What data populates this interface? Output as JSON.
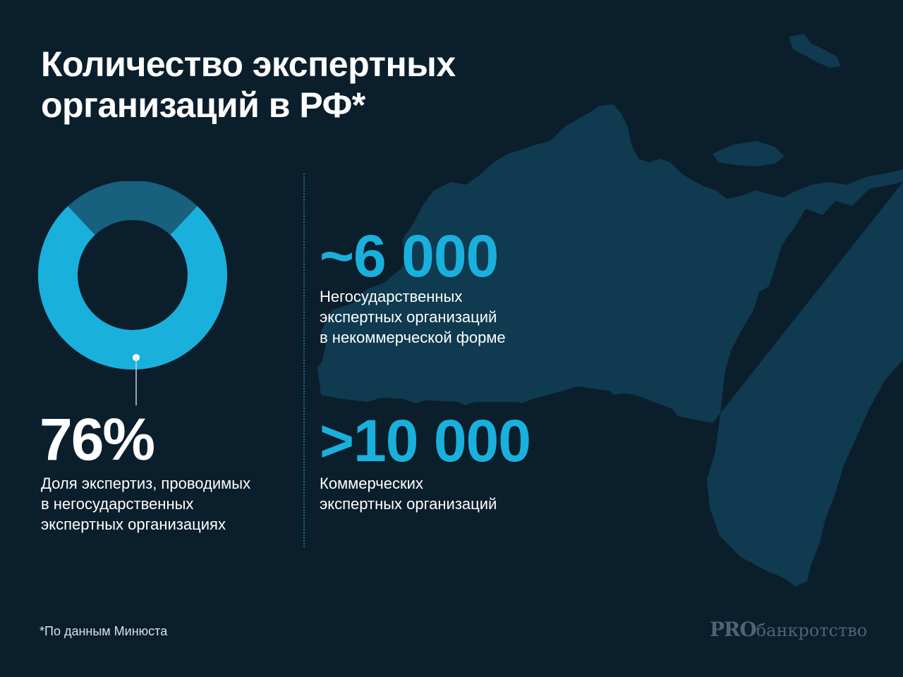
{
  "title": {
    "line1": "Количество экспертных",
    "line2": "организаций в РФ*"
  },
  "colors": {
    "background": "#0b1e2c",
    "map": "#0f3a4f",
    "accent": "#1ab0dc",
    "donut_rest": "#17607e"
  },
  "stat_share": {
    "value_text": "76%",
    "value": 76,
    "description": [
      "Доля экспертиз, проводимых",
      "в негосударственных",
      "экспертных организациях"
    ]
  },
  "stat_noncommercial": {
    "value_text": "~6 000",
    "description": [
      "Негосударственных",
      "экспертных организаций",
      "в некоммерческой форме"
    ]
  },
  "stat_commercial": {
    "value_text": ">10 000",
    "description": [
      "Коммерческих",
      "экспертных организаций"
    ]
  },
  "footnote": "*По данным Минюста",
  "logo": {
    "pro": "PRO",
    "rest": "банкротство"
  }
}
